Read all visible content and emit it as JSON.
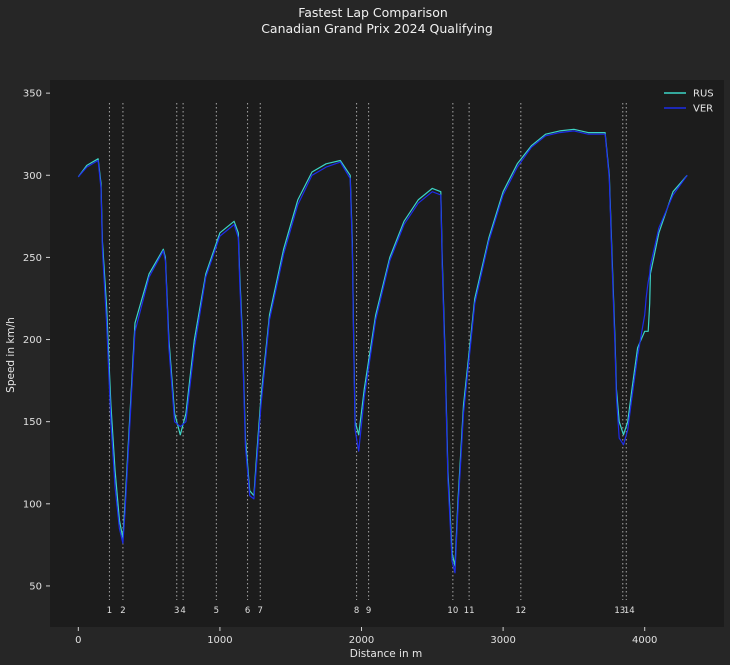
{
  "chart_data": {
    "type": "line",
    "title": "Fastest Lap Comparison",
    "subtitle": "Canadian Grand Prix 2024 Qualifying",
    "xlabel": "Distance in m",
    "ylabel": "Speed in km/h",
    "xlim": [
      -200,
      4560
    ],
    "ylim": [
      25,
      358
    ],
    "x_ticks": [
      0,
      1000,
      2000,
      3000,
      4000
    ],
    "y_ticks": [
      50,
      100,
      150,
      200,
      250,
      300,
      350
    ],
    "grid": false,
    "legend": "top-right",
    "colors": {
      "background": "#262626",
      "plot_area": "#1c1c1c",
      "RUS": "#3cd5c6",
      "VER": "#1d2ce8",
      "corner_lines": "#9a9a9a"
    },
    "corners": [
      {
        "number": "1",
        "distance": 220
      },
      {
        "number": "2",
        "distance": 315
      },
      {
        "number": "3",
        "distance": 695
      },
      {
        "number": "4",
        "distance": 740
      },
      {
        "number": "5",
        "distance": 975
      },
      {
        "number": "6",
        "distance": 1195
      },
      {
        "number": "7",
        "distance": 1285
      },
      {
        "number": "8",
        "distance": 1965
      },
      {
        "number": "9",
        "distance": 2050
      },
      {
        "number": "10",
        "distance": 2645
      },
      {
        "number": "11",
        "distance": 2760
      },
      {
        "number": "12",
        "distance": 3125
      },
      {
        "number": "13",
        "distance": 3845
      },
      {
        "number": "14",
        "distance": 3870
      }
    ],
    "series": [
      {
        "name": "RUS",
        "x": [
          0,
          60,
          140,
          160,
          170,
          200,
          230,
          260,
          290,
          315,
          330,
          400,
          500,
          600,
          615,
          640,
          680,
          720,
          760,
          820,
          900,
          1000,
          1100,
          1130,
          1140,
          1160,
          1180,
          1210,
          1240,
          1260,
          1290,
          1350,
          1450,
          1550,
          1650,
          1750,
          1850,
          1920,
          1935,
          1945,
          1955,
          1980,
          2020,
          2100,
          2200,
          2300,
          2400,
          2500,
          2560,
          2570,
          2590,
          2610,
          2640,
          2660,
          2680,
          2720,
          2800,
          2900,
          3000,
          3100,
          3200,
          3300,
          3400,
          3500,
          3600,
          3660,
          3680,
          3720,
          3750,
          3770,
          3790,
          3800,
          3820,
          3850,
          3880,
          3910,
          3950,
          4000,
          4010,
          4020,
          4025,
          4035,
          4040,
          4100,
          4200,
          4300
        ],
        "y": [
          299,
          306,
          310,
          295,
          260,
          220,
          160,
          120,
          90,
          79,
          100,
          210,
          240,
          255,
          250,
          200,
          155,
          142,
          155,
          200,
          240,
          265,
          272,
          265,
          240,
          200,
          140,
          108,
          105,
          130,
          165,
          215,
          255,
          285,
          302,
          307,
          309,
          300,
          260,
          200,
          150,
          142,
          170,
          215,
          250,
          272,
          285,
          292,
          290,
          250,
          190,
          120,
          70,
          62,
          100,
          160,
          225,
          262,
          290,
          307,
          318,
          325,
          327,
          328,
          326,
          326,
          326,
          326,
          300,
          250,
          200,
          170,
          150,
          142,
          150,
          170,
          195,
          205,
          205,
          205,
          205,
          222,
          240,
          265,
          290,
          300
        ]
      },
      {
        "name": "VER",
        "x": [
          0,
          60,
          140,
          160,
          170,
          200,
          230,
          260,
          290,
          315,
          330,
          400,
          500,
          600,
          615,
          640,
          680,
          720,
          760,
          820,
          900,
          1000,
          1100,
          1130,
          1140,
          1160,
          1180,
          1210,
          1240,
          1260,
          1290,
          1350,
          1450,
          1550,
          1650,
          1750,
          1850,
          1920,
          1935,
          1945,
          1955,
          1980,
          2020,
          2100,
          2200,
          2300,
          2400,
          2500,
          2560,
          2570,
          2590,
          2610,
          2640,
          2660,
          2680,
          2720,
          2800,
          2900,
          3000,
          3100,
          3200,
          3300,
          3400,
          3500,
          3600,
          3660,
          3680,
          3720,
          3750,
          3770,
          3790,
          3800,
          3820,
          3850,
          3880,
          3910,
          3950,
          4000,
          4010,
          4020,
          4025,
          4035,
          4040,
          4100,
          4200,
          4300
        ],
        "y": [
          299,
          305,
          309,
          292,
          255,
          210,
          150,
          110,
          85,
          76,
          95,
          205,
          238,
          254,
          248,
          195,
          150,
          147,
          150,
          195,
          238,
          263,
          270,
          262,
          235,
          195,
          135,
          105,
          103,
          125,
          160,
          212,
          252,
          282,
          300,
          305,
          308,
          298,
          255,
          195,
          145,
          132,
          165,
          212,
          248,
          270,
          283,
          290,
          288,
          245,
          185,
          115,
          65,
          58,
          95,
          155,
          222,
          260,
          288,
          305,
          317,
          324,
          326,
          327,
          325,
          325,
          325,
          325,
          298,
          245,
          195,
          165,
          140,
          136,
          145,
          165,
          190,
          215,
          225,
          232,
          235,
          240,
          245,
          268,
          288,
          300
        ]
      }
    ]
  }
}
